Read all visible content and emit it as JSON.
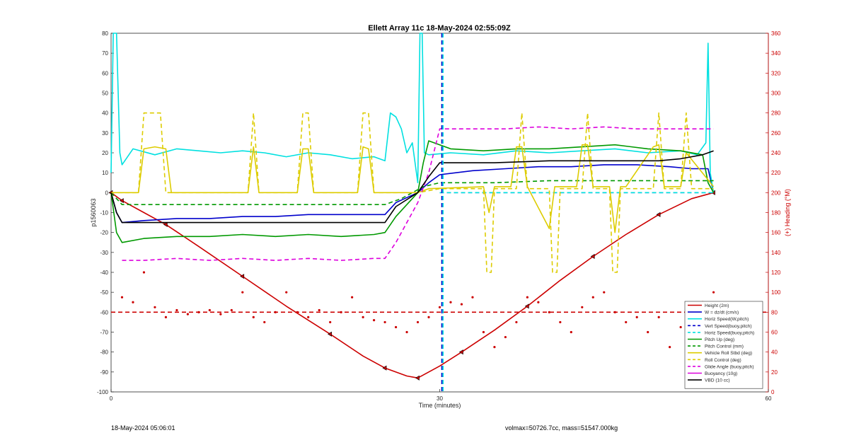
{
  "footer": {
    "timestamp": "18-May-2024 05:06:01",
    "info": "volmax=50726.7cc, mass=51547.000kg"
  },
  "chart_data": {
    "type": "line",
    "title": "Ellett Array 11c 18-May-2024 02:55:09Z",
    "xlabel": "Time (minutes)",
    "ylabel": "p1560063",
    "y2label": "(+) Heading (°M)",
    "xlim": [
      0,
      60
    ],
    "ylim": [
      -100,
      80
    ],
    "y2lim": [
      0,
      360
    ],
    "xticks": [
      0,
      30,
      60
    ],
    "yticks": [
      -100,
      -90,
      -80,
      -70,
      -60,
      -50,
      -40,
      -30,
      -20,
      -10,
      0,
      10,
      20,
      30,
      40,
      50,
      60,
      70,
      80
    ],
    "y2ticks": [
      0,
      20,
      40,
      60,
      80,
      100,
      120,
      140,
      160,
      180,
      200,
      220,
      240,
      260,
      280,
      300,
      320,
      340,
      360
    ],
    "grid": false,
    "legend_position": "bottom-right",
    "series": [
      {
        "name": "Height (2m)",
        "color": "#cc0000",
        "style": "solid",
        "markers": "triangle",
        "x": [
          0,
          1,
          3,
          5,
          8,
          12,
          16,
          20,
          23,
          25,
          27,
          28,
          30,
          32,
          35,
          38,
          41,
          44,
          47,
          50,
          53,
          55
        ],
        "y": [
          0,
          -4,
          -10,
          -16,
          -27,
          -42,
          -57,
          -71,
          -82,
          -88,
          -92,
          -93,
          -87,
          -80,
          -69,
          -57,
          -44,
          -32,
          -21,
          -11,
          -3,
          0
        ]
      },
      {
        "name": "W = dz/dt (cm/s)",
        "color": "#0000cc",
        "style": "solid",
        "x": [
          0,
          0.5,
          1,
          3,
          6,
          9,
          12,
          15,
          18,
          21,
          24,
          25,
          26,
          28,
          29,
          30,
          33,
          36,
          39,
          42,
          45,
          48,
          51,
          53,
          54.5,
          55
        ],
        "y": [
          0,
          -10,
          -15,
          -14,
          -13,
          -13,
          -12,
          -12,
          -11,
          -11,
          -11,
          -11,
          -5,
          0,
          5,
          9,
          11,
          12,
          13,
          13,
          14,
          14,
          13,
          12,
          12,
          0
        ]
      },
      {
        "name": "Horiz Speed(W,pitch)",
        "color": "#00e0e0",
        "style": "solid",
        "x": [
          0,
          0.2,
          0.5,
          0.8,
          1,
          2,
          4,
          6,
          8,
          10,
          12,
          14,
          16,
          18,
          20,
          22,
          24,
          25,
          25.5,
          26,
          26.5,
          27,
          27.5,
          28,
          28.2,
          28.4,
          28.6,
          29,
          31,
          34,
          37,
          40,
          43,
          46,
          49,
          52,
          53.5,
          54.3,
          54.5,
          54.7,
          55
        ],
        "y": [
          10,
          80,
          80,
          20,
          14,
          22,
          19,
          22,
          21,
          20,
          21,
          20,
          18,
          20,
          19,
          17,
          18,
          16,
          40,
          38,
          32,
          20,
          25,
          5,
          80,
          80,
          20,
          19,
          20,
          19,
          21,
          20,
          21,
          22,
          20,
          21,
          19,
          25,
          75,
          10,
          0
        ]
      },
      {
        "name": "Vert Speed(buoy,pitch)",
        "color": "#0000cc",
        "style": "dashed",
        "x": [
          30,
          55
        ],
        "y": [
          0,
          0
        ]
      },
      {
        "name": "Horiz Speed(buoy,pitch)",
        "color": "#00e0e0",
        "style": "dashed",
        "x": [
          30,
          55
        ],
        "y": [
          0,
          0
        ]
      },
      {
        "name": "Pitch Up (deg)",
        "color": "#009900",
        "style": "solid",
        "x": [
          0,
          0.5,
          1,
          3,
          6,
          9,
          12,
          15,
          18,
          21,
          24,
          25,
          26,
          28,
          28.5,
          29,
          31,
          34,
          37,
          40,
          43,
          46,
          49,
          52,
          54,
          54.5,
          55
        ],
        "y": [
          0,
          -20,
          -25,
          -23,
          -22,
          -22,
          -21,
          -22,
          -21,
          -22,
          -21,
          -20,
          -12,
          0,
          15,
          26,
          22,
          21,
          22,
          22,
          23,
          24,
          22,
          21,
          19,
          5,
          0
        ]
      },
      {
        "name": "Pitch Control (mm)",
        "color": "#009900",
        "style": "dashed",
        "x": [
          0,
          1,
          10,
          20,
          25,
          26.5,
          28.5,
          30,
          35,
          40,
          45,
          50,
          55
        ],
        "y": [
          0,
          -6,
          -6,
          -6,
          -6,
          -3,
          3,
          5,
          5,
          6,
          6,
          6,
          6
        ]
      },
      {
        "name": "Vehicle Roll Stbd (deg)",
        "color": "#ddcc00",
        "style": "solid",
        "x": [
          0,
          2.5,
          3,
          4,
          5,
          5.5,
          12.5,
          13,
          13.5,
          17,
          17.5,
          18,
          18.5,
          22.5,
          23,
          23.5,
          24,
          28,
          29,
          34,
          34.5,
          35,
          36.5,
          37,
          37.5,
          38,
          40,
          40.5,
          41,
          42.5,
          43,
          43.5,
          44,
          45.5,
          46,
          46.5,
          47,
          49.5,
          50,
          50.5,
          52,
          52.5,
          55
        ],
        "y": [
          0,
          0,
          22,
          23,
          22,
          0,
          0,
          23,
          0,
          0,
          22,
          22,
          0,
          0,
          23,
          22,
          0,
          0,
          2,
          3,
          -10,
          3,
          3,
          23,
          23,
          3,
          -18,
          3,
          3,
          3,
          24,
          24,
          3,
          3,
          -20,
          3,
          3,
          23,
          24,
          3,
          3,
          20,
          3
        ]
      },
      {
        "name": "Roll Control (deg)",
        "color": "#ddcc00",
        "style": "dashed",
        "x": [
          0,
          2.5,
          3,
          4.5,
          5,
          12.5,
          13,
          13.5,
          17,
          17.5,
          18,
          18.5,
          22.5,
          23,
          23.5,
          24,
          28,
          30,
          34,
          34.3,
          34.7,
          35,
          37,
          37.5,
          38,
          40,
          40.3,
          40.7,
          41,
          43,
          43.5,
          44,
          45.5,
          45.8,
          46.2,
          46.5,
          49.5,
          50,
          50.5,
          52,
          52.5,
          53,
          55
        ],
        "y": [
          0,
          0,
          40,
          40,
          0,
          0,
          40,
          0,
          0,
          40,
          40,
          0,
          0,
          40,
          40,
          0,
          0,
          2,
          2,
          -40,
          -40,
          2,
          2,
          40,
          2,
          2,
          -40,
          -40,
          2,
          2,
          40,
          2,
          2,
          -40,
          -40,
          2,
          2,
          40,
          2,
          2,
          40,
          2,
          2
        ]
      },
      {
        "name": "Glide Angle (buoy,pitch)",
        "color": "#dd00dd",
        "style": "dashed",
        "x": [
          1,
          3,
          6,
          9,
          12,
          15,
          18,
          21,
          24,
          25,
          26,
          28,
          29,
          30,
          33,
          36,
          39,
          42,
          45,
          48,
          51,
          53,
          54,
          55
        ],
        "y": [
          -34,
          -34,
          -33,
          -34,
          -33,
          -34,
          -33,
          -34,
          -33,
          -33,
          -25,
          -5,
          10,
          32,
          32,
          32,
          33,
          32,
          33,
          32,
          32,
          32,
          32,
          32
        ]
      },
      {
        "name": "Buoyancy (10g)",
        "color": "#dd00dd",
        "style": "solid",
        "x": [],
        "y": []
      },
      {
        "name": "VBD (10 cc)",
        "color": "#000000",
        "style": "solid",
        "x": [
          0,
          0.5,
          1,
          5,
          10,
          15,
          20,
          25,
          26,
          28,
          29,
          30,
          35,
          40,
          45,
          50,
          52,
          54,
          55
        ],
        "y": [
          0,
          -10,
          -15,
          -15,
          -15,
          -15,
          -15,
          -15,
          -7,
          0,
          8,
          15,
          15,
          16,
          16,
          16,
          17,
          19,
          21
        ]
      },
      {
        "name": "(+) Heading (°M)",
        "color": "#cc0000",
        "style": "dots",
        "axis": "right",
        "x": [
          1,
          2,
          3,
          4,
          5,
          6,
          7,
          8,
          9,
          10,
          11,
          12,
          13,
          14,
          15,
          16,
          17,
          18,
          19,
          20,
          21,
          22,
          23,
          24,
          25,
          26,
          27,
          28,
          29,
          30,
          31,
          32,
          33,
          34,
          35,
          36,
          37,
          38,
          39,
          40,
          41,
          42,
          43,
          44,
          45,
          46,
          47,
          48,
          49,
          50,
          51,
          52,
          53,
          54,
          55
        ],
        "y": [
          95,
          90,
          120,
          85,
          75,
          82,
          78,
          80,
          82,
          78,
          82,
          100,
          75,
          70,
          80,
          100,
          80,
          75,
          82,
          70,
          80,
          95,
          75,
          72,
          70,
          65,
          60,
          70,
          75,
          85,
          90,
          88,
          95,
          60,
          45,
          55,
          70,
          95,
          90,
          80,
          70,
          60,
          85,
          95,
          100,
          80,
          70,
          75,
          60,
          75,
          45,
          65,
          40,
          90,
          100
        ]
      },
      {
        "name": "Heading reference",
        "color": "#cc0000",
        "style": "dashed",
        "axis": "right",
        "legend": false,
        "x": [
          0,
          60
        ],
        "y": [
          80,
          80
        ]
      },
      {
        "name": "Time marker",
        "color": "#0000cc",
        "style": "dashed",
        "legend": false,
        "vertical": true,
        "x": [
          30.2
        ]
      },
      {
        "name": "Time marker 2",
        "color": "#00e0e0",
        "style": "dashed",
        "legend": false,
        "vertical": true,
        "x": [
          30.3
        ]
      }
    ]
  }
}
